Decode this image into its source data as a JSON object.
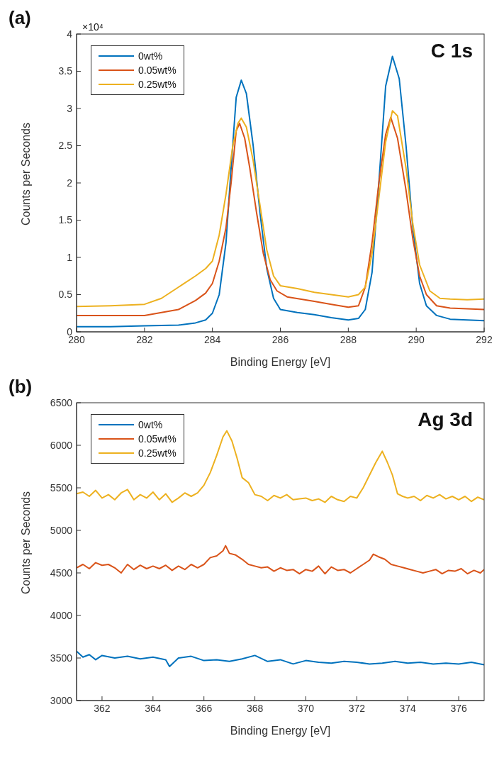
{
  "chart_data": [
    {
      "type": "line",
      "xlabel": "Binding Energy [eV]",
      "ylabel": "Counts per Seconds",
      "annotations": [
        "(a)",
        "C 1s",
        "×10⁴"
      ],
      "legend": "top left",
      "grid": false,
      "xlim": [
        280,
        292
      ],
      "xticks": [
        280,
        282,
        284,
        286,
        288,
        290,
        292
      ],
      "ylim": [
        0,
        4
      ],
      "yticks": [
        0,
        0.5,
        1,
        1.5,
        2,
        2.5,
        3,
        3.5,
        4
      ],
      "series": [
        {
          "name": "0wt%",
          "color": "#0072bd",
          "x": [
            280,
            281,
            282,
            283,
            283.5,
            283.8,
            284,
            284.2,
            284.4,
            284.55,
            284.7,
            284.85,
            285,
            285.2,
            285.4,
            285.6,
            285.8,
            286,
            286.5,
            287,
            287.5,
            288,
            288.3,
            288.5,
            288.7,
            288.9,
            289.1,
            289.3,
            289.5,
            289.7,
            289.9,
            290.1,
            290.3,
            290.6,
            291,
            291.5,
            292
          ],
          "values": [
            0.07,
            0.07,
            0.08,
            0.09,
            0.12,
            0.16,
            0.25,
            0.5,
            1.2,
            2.2,
            3.15,
            3.38,
            3.2,
            2.5,
            1.6,
            0.85,
            0.45,
            0.3,
            0.26,
            0.23,
            0.19,
            0.16,
            0.18,
            0.3,
            0.8,
            2.0,
            3.3,
            3.7,
            3.4,
            2.5,
            1.4,
            0.65,
            0.35,
            0.22,
            0.17,
            0.16,
            0.15
          ]
        },
        {
          "name": "0.05wt%",
          "color": "#d95319",
          "x": [
            280,
            281,
            282,
            283,
            283.5,
            283.8,
            284,
            284.2,
            284.4,
            284.55,
            284.7,
            284.8,
            284.95,
            285.1,
            285.3,
            285.5,
            285.7,
            285.9,
            286.2,
            287,
            287.5,
            288,
            288.3,
            288.5,
            288.7,
            288.9,
            289.1,
            289.25,
            289.45,
            289.7,
            289.9,
            290.1,
            290.3,
            290.6,
            291,
            292
          ],
          "values": [
            0.22,
            0.22,
            0.22,
            0.3,
            0.42,
            0.52,
            0.65,
            0.95,
            1.4,
            2.0,
            2.7,
            2.8,
            2.6,
            2.2,
            1.6,
            1.05,
            0.7,
            0.55,
            0.47,
            0.41,
            0.37,
            0.33,
            0.35,
            0.6,
            1.2,
            2.0,
            2.65,
            2.88,
            2.6,
            1.9,
            1.25,
            0.75,
            0.5,
            0.35,
            0.32,
            0.3
          ]
        },
        {
          "name": "0.25wt%",
          "color": "#edb120",
          "x": [
            280,
            281,
            282,
            282.5,
            283,
            283.5,
            283.8,
            284,
            284.2,
            284.4,
            284.6,
            284.75,
            284.85,
            285,
            285.2,
            285.4,
            285.6,
            285.8,
            286,
            286.5,
            287,
            287.5,
            288,
            288.3,
            288.5,
            288.7,
            288.9,
            289.1,
            289.3,
            289.45,
            289.7,
            289.9,
            290.1,
            290.4,
            290.7,
            291,
            291.5,
            292
          ],
          "values": [
            0.34,
            0.35,
            0.37,
            0.45,
            0.6,
            0.75,
            0.85,
            0.95,
            1.3,
            1.85,
            2.5,
            2.8,
            2.87,
            2.75,
            2.3,
            1.7,
            1.1,
            0.75,
            0.62,
            0.58,
            0.53,
            0.5,
            0.47,
            0.5,
            0.6,
            1.05,
            1.8,
            2.55,
            2.97,
            2.9,
            2.2,
            1.45,
            0.9,
            0.55,
            0.45,
            0.44,
            0.43,
            0.44
          ]
        }
      ]
    },
    {
      "type": "line",
      "xlabel": "Binding Energy [eV]",
      "ylabel": "Counts per Seconds",
      "annotations": [
        "(b)",
        "Ag 3d"
      ],
      "legend": "top left",
      "grid": false,
      "xlim": [
        361,
        377
      ],
      "xticks": [
        362,
        364,
        366,
        368,
        370,
        372,
        374,
        376
      ],
      "ylim": [
        3000,
        6500
      ],
      "yticks": [
        3000,
        3500,
        4000,
        4500,
        5000,
        5500,
        6000,
        6500
      ],
      "series": [
        {
          "name": "0wt%",
          "color": "#0072bd",
          "x": [
            361,
            361.25,
            361.5,
            361.75,
            362,
            362.5,
            363,
            363.5,
            364,
            364.5,
            364.65,
            365,
            365.5,
            366,
            366.5,
            367,
            367.5,
            368,
            368.5,
            369,
            369.5,
            370,
            370.5,
            371,
            371.5,
            372,
            372.5,
            373,
            373.5,
            374,
            374.5,
            375,
            375.5,
            376,
            376.5,
            377
          ],
          "values": [
            3580,
            3510,
            3540,
            3480,
            3530,
            3500,
            3520,
            3490,
            3510,
            3480,
            3400,
            3500,
            3520,
            3470,
            3480,
            3460,
            3490,
            3530,
            3460,
            3480,
            3430,
            3470,
            3450,
            3440,
            3460,
            3450,
            3430,
            3440,
            3460,
            3440,
            3450,
            3430,
            3440,
            3430,
            3450,
            3420
          ]
        },
        {
          "name": "0.05wt%",
          "color": "#d95319",
          "x": [
            361,
            361.25,
            361.5,
            361.75,
            362,
            362.25,
            362.5,
            362.75,
            363,
            363.25,
            363.5,
            363.75,
            364,
            364.25,
            364.5,
            364.75,
            365,
            365.25,
            365.5,
            365.75,
            366,
            366.25,
            366.5,
            366.75,
            366.85,
            367,
            367.25,
            367.5,
            367.75,
            368,
            368.25,
            368.5,
            368.75,
            369,
            369.25,
            369.5,
            369.75,
            370,
            370.25,
            370.5,
            370.75,
            371,
            371.25,
            371.5,
            371.75,
            372,
            372.25,
            372.5,
            372.65,
            372.85,
            373.1,
            373.35,
            373.6,
            373.85,
            374.1,
            374.35,
            374.6,
            374.85,
            375.1,
            375.35,
            375.6,
            375.85,
            376.1,
            376.35,
            376.6,
            376.85,
            377
          ],
          "values": [
            4560,
            4600,
            4550,
            4620,
            4590,
            4600,
            4560,
            4500,
            4600,
            4540,
            4590,
            4550,
            4580,
            4550,
            4590,
            4530,
            4580,
            4540,
            4600,
            4560,
            4600,
            4680,
            4700,
            4760,
            4820,
            4730,
            4710,
            4660,
            4600,
            4580,
            4560,
            4570,
            4520,
            4560,
            4530,
            4540,
            4490,
            4540,
            4520,
            4580,
            4490,
            4570,
            4530,
            4540,
            4500,
            4550,
            4600,
            4650,
            4720,
            4690,
            4660,
            4600,
            4580,
            4560,
            4540,
            4520,
            4500,
            4520,
            4540,
            4490,
            4530,
            4520,
            4550,
            4490,
            4530,
            4500,
            4540
          ]
        },
        {
          "name": "0.25wt%",
          "color": "#edb120",
          "x": [
            361,
            361.25,
            361.5,
            361.75,
            362,
            362.25,
            362.5,
            362.75,
            363,
            363.25,
            363.5,
            363.75,
            364,
            364.25,
            364.5,
            364.75,
            365,
            365.25,
            365.5,
            365.75,
            366,
            366.25,
            366.5,
            366.75,
            366.9,
            367.1,
            367.3,
            367.5,
            367.75,
            368,
            368.25,
            368.5,
            368.75,
            369,
            369.25,
            369.5,
            369.75,
            370,
            370.25,
            370.5,
            370.75,
            371,
            371.25,
            371.5,
            371.75,
            372,
            372.25,
            372.5,
            372.75,
            373,
            373.2,
            373.4,
            373.6,
            373.8,
            374,
            374.25,
            374.5,
            374.75,
            375,
            375.25,
            375.5,
            375.75,
            376,
            376.25,
            376.5,
            376.75,
            377
          ],
          "values": [
            5430,
            5450,
            5400,
            5470,
            5380,
            5420,
            5360,
            5440,
            5480,
            5360,
            5420,
            5380,
            5450,
            5360,
            5430,
            5330,
            5380,
            5440,
            5400,
            5440,
            5530,
            5680,
            5880,
            6100,
            6170,
            6050,
            5850,
            5620,
            5560,
            5420,
            5400,
            5350,
            5410,
            5380,
            5420,
            5360,
            5370,
            5380,
            5350,
            5370,
            5330,
            5400,
            5360,
            5340,
            5400,
            5380,
            5500,
            5650,
            5800,
            5930,
            5800,
            5650,
            5430,
            5400,
            5380,
            5400,
            5350,
            5410,
            5380,
            5420,
            5370,
            5400,
            5360,
            5400,
            5340,
            5390,
            5360
          ]
        }
      ]
    }
  ]
}
